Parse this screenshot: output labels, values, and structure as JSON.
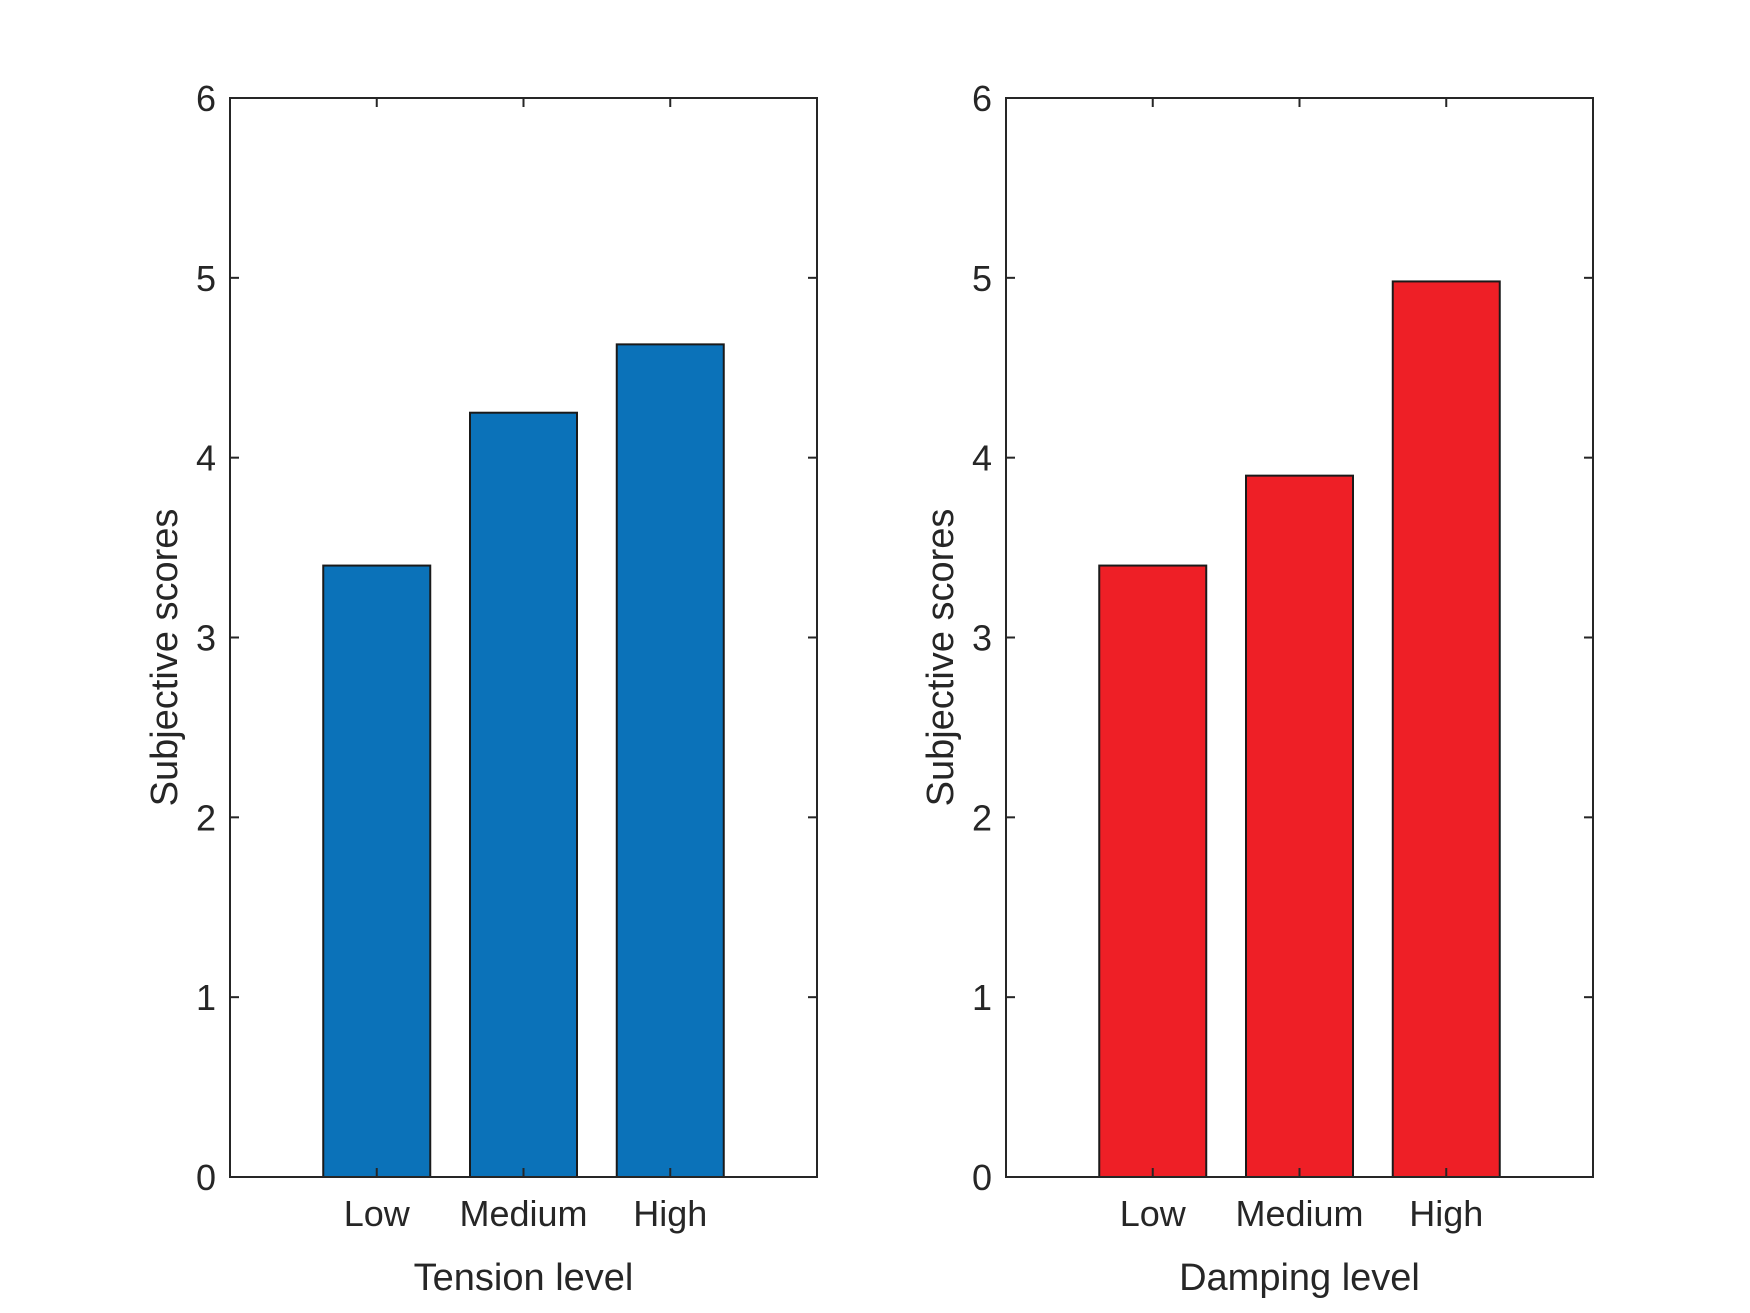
{
  "chart_data": [
    {
      "type": "bar",
      "categories": [
        "Low",
        "Medium",
        "High"
      ],
      "values": [
        3.4,
        4.25,
        4.63
      ],
      "xlabel": "Tension level",
      "ylabel": "Subjective scores",
      "ylim": [
        0,
        6
      ],
      "yticks": [
        0,
        1,
        2,
        3,
        4,
        5,
        6
      ],
      "color": "#0b72b9",
      "grid": false
    },
    {
      "type": "bar",
      "categories": [
        "Low",
        "Medium",
        "High"
      ],
      "values": [
        3.4,
        3.9,
        4.98
      ],
      "xlabel": "Damping level",
      "ylabel": "Subjective scores",
      "ylim": [
        0,
        6
      ],
      "yticks": [
        0,
        1,
        2,
        3,
        4,
        5,
        6
      ],
      "color": "#ee1f26",
      "grid": false
    }
  ]
}
